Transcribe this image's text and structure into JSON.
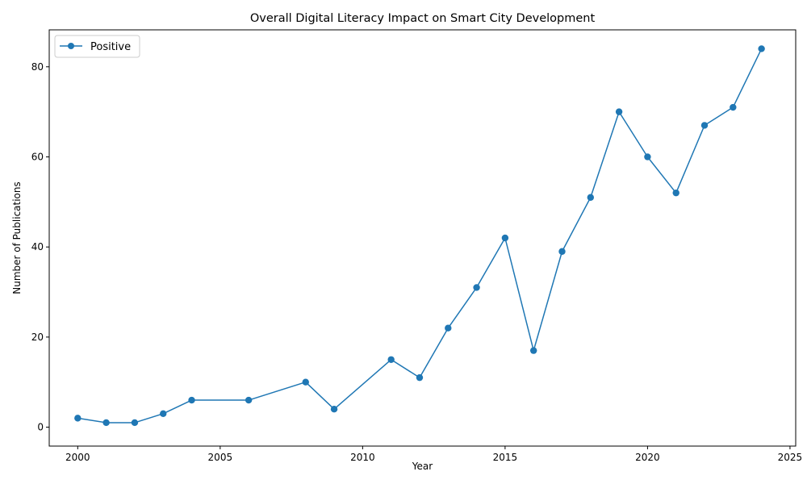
{
  "chart_data": {
    "type": "line",
    "title": "Overall Digital Literacy Impact on Smart City Development",
    "xlabel": "Year",
    "ylabel": "Number of Publications",
    "xlim": [
      1999,
      2025.2
    ],
    "ylim": [
      -4.2,
      88.2
    ],
    "xticks": [
      2000,
      2005,
      2010,
      2015,
      2020,
      2025
    ],
    "yticks": [
      0,
      20,
      40,
      60,
      80
    ],
    "grid": false,
    "legend": "top-left",
    "series": [
      {
        "name": "Positive",
        "color": "#1f77b4",
        "marker": "circle",
        "x": [
          2000,
          2001,
          2002,
          2003,
          2004,
          2006,
          2008,
          2009,
          2011,
          2012,
          2013,
          2014,
          2015,
          2016,
          2017,
          2018,
          2019,
          2020,
          2021,
          2022,
          2023,
          2024
        ],
        "y": [
          2,
          1,
          1,
          3,
          6,
          6,
          10,
          4,
          15,
          11,
          22,
          31,
          42,
          17,
          39,
          51,
          70,
          60,
          52,
          67,
          71,
          84
        ]
      }
    ]
  }
}
